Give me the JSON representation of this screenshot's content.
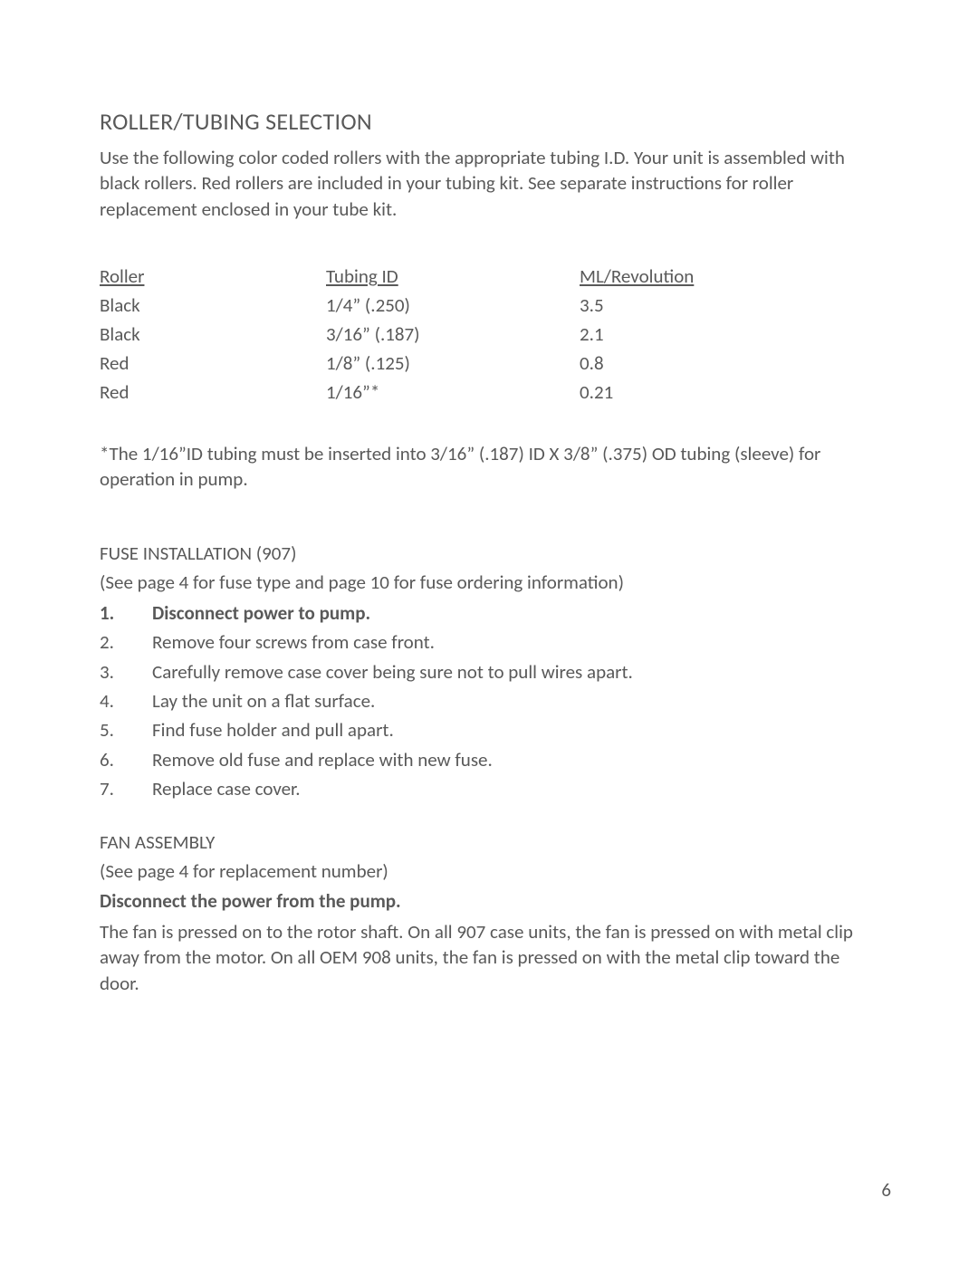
{
  "title": "ROLLER/TUBING SELECTION",
  "intro": "Use the following color coded rollers with the appropriate tubing I.D. Your unit is assembled with black rollers. Red rollers are included in your tubing kit.  See separate instructions for roller replacement enclosed in your tube kit.",
  "table": {
    "headers": {
      "c1": "Roller",
      "c2": "Tubing ID",
      "c3": "ML/Revolution"
    },
    "rows": [
      {
        "c1": "Black",
        "c2": "1/4” (.250)",
        "c3": "3.5"
      },
      {
        "c1": "Black",
        "c2": "3/16” (.187)",
        "c3": "2.1"
      },
      {
        "c1": "Red",
        "c2": "1/8” (.125)",
        "c3": "0.8"
      },
      {
        "c1": "Red",
        "c2": "1/16”*",
        "c3": "0.21"
      }
    ]
  },
  "footnote": "*The 1/16”ID tubing must be inserted into 3/16” (.187) ID X 3/8” (.375) OD tubing (sleeve) for operation in pump.",
  "fuse": {
    "heading": "FUSE INSTALLATION (907)",
    "sub": "(See page 4 for fuse type and page 10 for fuse ordering information)",
    "steps": [
      {
        "n": "1.",
        "t": "Disconnect power to pump.",
        "bold": true
      },
      {
        "n": "2.",
        "t": "Remove four screws from case front."
      },
      {
        "n": "3.",
        "t": "Carefully remove case cover being sure not to pull wires apart."
      },
      {
        "n": "4.",
        "t": "Lay the unit on a flat surface."
      },
      {
        "n": "5.",
        "t": "Find fuse holder and pull apart."
      },
      {
        "n": "6.",
        "t": "Remove old fuse and replace with new fuse."
      },
      {
        "n": "7.",
        "t": "Replace case cover."
      }
    ]
  },
  "fan": {
    "heading": "FAN ASSEMBLY",
    "sub": "(See page 4 for replacement number)",
    "bold_line": "Disconnect the power from the pump.",
    "body": "The fan is pressed on to the rotor shaft. On all 907 case units, the fan is pressed on with metal clip away from the motor. On all OEM 908 units, the fan is pressed on with the metal clip toward the door."
  },
  "page_number": "6"
}
